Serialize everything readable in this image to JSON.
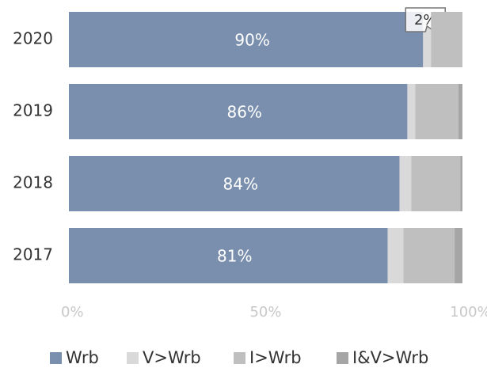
{
  "chart_data": {
    "type": "stacked-bar-horizontal",
    "categories": [
      "2020",
      "2019",
      "2018",
      "2017"
    ],
    "series": [
      {
        "name": "Wrb",
        "color": "#7a8fad",
        "values": [
          90,
          86,
          84,
          81
        ],
        "value_labels": [
          "90%",
          "86%",
          "84%",
          "81%"
        ]
      },
      {
        "name": "V>Wrb",
        "color": "#d9d9d9",
        "values": [
          2,
          2,
          3,
          4
        ],
        "value_labels": [
          "2%",
          null,
          null,
          null
        ]
      },
      {
        "name": "I>Wrb",
        "color": "#bfbfbf",
        "values": [
          8,
          11,
          12.5,
          13
        ]
      },
      {
        "name": "I&V>Wrb",
        "color": "#a5a5a5",
        "values": [
          0,
          1,
          0.5,
          2
        ]
      }
    ],
    "xlim": [
      0,
      100
    ],
    "xticks": [
      {
        "value": 0,
        "label": "0%"
      },
      {
        "value": 50,
        "label": "50%"
      },
      {
        "value": 100,
        "label": "100%"
      }
    ],
    "legend": "bottom"
  }
}
